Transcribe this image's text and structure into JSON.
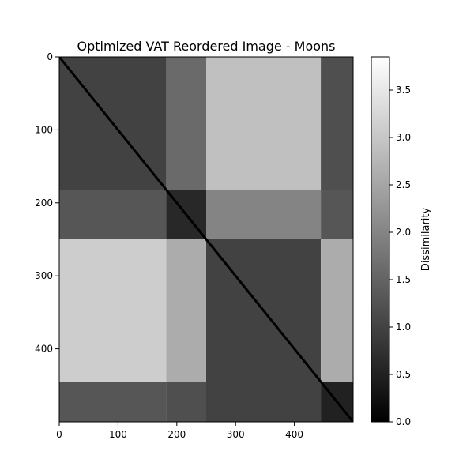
{
  "chart_data": {
    "type": "heatmap",
    "title": "Optimized VAT Reordered Image - Moons",
    "xlabel": "",
    "ylabel": "",
    "n": 500,
    "xlim": [
      0,
      500
    ],
    "ylim": [
      500,
      0
    ],
    "x_ticks": [
      0,
      100,
      200,
      300,
      400
    ],
    "y_ticks": [
      0,
      100,
      200,
      300,
      400
    ],
    "colormap": "gray",
    "colorbar": {
      "label": "Dissimilarity",
      "range": [
        0,
        3.85
      ],
      "ticks": [
        0.0,
        0.5,
        1.0,
        1.5,
        2.0,
        2.5,
        3.0,
        3.5
      ],
      "tick_labels": [
        "0.0",
        "0.5",
        "1.0",
        "1.5",
        "2.0",
        "2.5",
        "3.0",
        "3.5"
      ]
    },
    "blocks": [
      {
        "rows": [
          0,
          182
        ],
        "cols": [
          0,
          182
        ],
        "mean": 1.0
      },
      {
        "rows": [
          0,
          182
        ],
        "cols": [
          182,
          250
        ],
        "mean": 1.6
      },
      {
        "rows": [
          0,
          182
        ],
        "cols": [
          250,
          445
        ],
        "mean": 2.9
      },
      {
        "rows": [
          0,
          182
        ],
        "cols": [
          445,
          500
        ],
        "mean": 1.2
      },
      {
        "rows": [
          182,
          250
        ],
        "cols": [
          0,
          182
        ],
        "mean": 1.3
      },
      {
        "rows": [
          182,
          250
        ],
        "cols": [
          182,
          250
        ],
        "mean": 0.6
      },
      {
        "rows": [
          182,
          250
        ],
        "cols": [
          250,
          445
        ],
        "mean": 2.0
      },
      {
        "rows": [
          182,
          250
        ],
        "cols": [
          445,
          500
        ],
        "mean": 1.3
      },
      {
        "rows": [
          250,
          445
        ],
        "cols": [
          0,
          182
        ],
        "mean": 3.1
      },
      {
        "rows": [
          250,
          445
        ],
        "cols": [
          182,
          250
        ],
        "mean": 2.6
      },
      {
        "rows": [
          250,
          445
        ],
        "cols": [
          250,
          445
        ],
        "mean": 1.0
      },
      {
        "rows": [
          250,
          445
        ],
        "cols": [
          445,
          500
        ],
        "mean": 2.6
      },
      {
        "rows": [
          445,
          500
        ],
        "cols": [
          0,
          182
        ],
        "mean": 1.3
      },
      {
        "rows": [
          445,
          500
        ],
        "cols": [
          182,
          250
        ],
        "mean": 1.2
      },
      {
        "rows": [
          445,
          500
        ],
        "cols": [
          250,
          445
        ],
        "mean": 1.0
      },
      {
        "rows": [
          445,
          500
        ],
        "cols": [
          445,
          500
        ],
        "mean": 0.5
      }
    ]
  }
}
